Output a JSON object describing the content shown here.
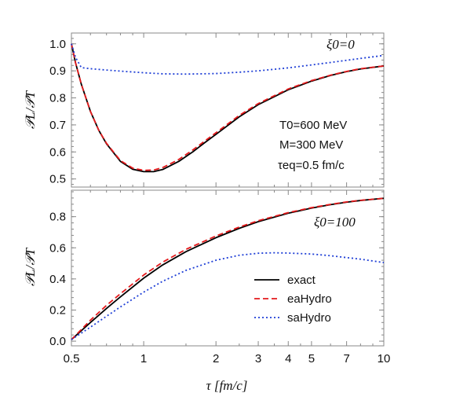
{
  "chart_data": [
    {
      "type": "line",
      "panel": "top",
      "xscale": "log",
      "xlim": [
        0.5,
        10
      ],
      "ylim": [
        0.47,
        1.04
      ],
      "ylabel": "𝒫L/𝒫T",
      "yticks": [
        0.5,
        0.6,
        0.7,
        0.8,
        0.9,
        1.0
      ],
      "ytick_labels": [
        "0.5",
        "0.6",
        "0.7",
        "0.8",
        "0.9",
        "1.0"
      ],
      "annotations": {
        "xi": "ξ0=0",
        "t0": "T0=600 MeV",
        "mass": "M=300 MeV",
        "tau_eq": "τeq=0.5 fm/c"
      },
      "series": [
        {
          "name": "exact",
          "color": "#000000",
          "dash": "solid",
          "x": [
            0.5,
            0.52,
            0.55,
            0.6,
            0.65,
            0.7,
            0.8,
            0.9,
            1.0,
            1.1,
            1.2,
            1.4,
            1.6,
            1.8,
            2.0,
            2.5,
            3.0,
            4.0,
            5.0,
            6.0,
            7.0,
            8.0,
            10.0
          ],
          "y": [
            1.0,
            0.93,
            0.85,
            0.75,
            0.68,
            0.63,
            0.565,
            0.536,
            0.527,
            0.527,
            0.535,
            0.565,
            0.6,
            0.635,
            0.665,
            0.73,
            0.775,
            0.83,
            0.862,
            0.883,
            0.897,
            0.907,
            0.918
          ]
        },
        {
          "name": "eaHydro",
          "color": "#e41a1c",
          "dash": "dashed",
          "x": [
            0.5,
            0.52,
            0.55,
            0.6,
            0.65,
            0.7,
            0.8,
            0.9,
            1.0,
            1.1,
            1.2,
            1.4,
            1.6,
            1.8,
            2.0,
            2.5,
            3.0,
            4.0,
            5.0,
            6.0,
            7.0,
            8.0,
            10.0
          ],
          "y": [
            1.0,
            0.93,
            0.85,
            0.75,
            0.68,
            0.632,
            0.568,
            0.54,
            0.532,
            0.533,
            0.542,
            0.572,
            0.607,
            0.641,
            0.671,
            0.735,
            0.779,
            0.833,
            0.864,
            0.884,
            0.898,
            0.908,
            0.918
          ]
        },
        {
          "name": "saHydro",
          "color": "#1f3fd6",
          "dash": "dotted",
          "x": [
            0.5,
            0.52,
            0.55,
            0.6,
            0.7,
            0.8,
            1.0,
            1.2,
            1.5,
            2.0,
            2.5,
            3.0,
            4.0,
            5.0,
            6.0,
            8.0,
            10.0
          ],
          "y": [
            1.0,
            0.95,
            0.912,
            0.908,
            0.903,
            0.899,
            0.893,
            0.889,
            0.888,
            0.89,
            0.895,
            0.9,
            0.911,
            0.922,
            0.931,
            0.946,
            0.957
          ]
        }
      ]
    },
    {
      "type": "line",
      "panel": "bottom",
      "xscale": "log",
      "xlim": [
        0.5,
        10
      ],
      "ylim": [
        -0.03,
        0.97
      ],
      "xlabel": "τ [fm/c]",
      "ylabel": "𝒫L/𝒫T",
      "xticks": [
        0.5,
        1,
        2,
        3,
        4,
        5,
        7,
        10
      ],
      "xtick_labels": [
        "0.5",
        "1",
        "2",
        "3",
        "4",
        "5",
        "7",
        "10"
      ],
      "yticks": [
        0.0,
        0.2,
        0.4,
        0.6,
        0.8
      ],
      "ytick_labels": [
        "0.0",
        "0.2",
        "0.4",
        "0.6",
        "0.8"
      ],
      "annotations": {
        "xi": "ξ0=100"
      },
      "legend": {
        "position": "lower-right",
        "items": [
          {
            "label": "exact",
            "color": "#000000",
            "dash": "solid"
          },
          {
            "label": "eaHydro",
            "color": "#e41a1c",
            "dash": "dashed"
          },
          {
            "label": "saHydro",
            "color": "#1f3fd6",
            "dash": "dotted"
          }
        ]
      },
      "series": [
        {
          "name": "exact",
          "color": "#000000",
          "dash": "solid",
          "x": [
            0.5,
            0.6,
            0.7,
            0.8,
            1.0,
            1.2,
            1.5,
            2.0,
            2.5,
            3.0,
            4.0,
            5.0,
            6.0,
            7.0,
            8.0,
            10.0
          ],
          "y": [
            0.01,
            0.12,
            0.21,
            0.285,
            0.405,
            0.49,
            0.575,
            0.665,
            0.725,
            0.768,
            0.822,
            0.855,
            0.877,
            0.893,
            0.904,
            0.918
          ]
        },
        {
          "name": "eaHydro",
          "color": "#e41a1c",
          "dash": "dashed",
          "x": [
            0.5,
            0.6,
            0.7,
            0.8,
            1.0,
            1.2,
            1.5,
            2.0,
            2.5,
            3.0,
            4.0,
            5.0,
            6.0,
            7.0,
            8.0,
            10.0
          ],
          "y": [
            0.01,
            0.135,
            0.23,
            0.305,
            0.425,
            0.508,
            0.59,
            0.676,
            0.733,
            0.774,
            0.826,
            0.858,
            0.879,
            0.895,
            0.905,
            0.918
          ]
        },
        {
          "name": "saHydro",
          "color": "#1f3fd6",
          "dash": "dotted",
          "x": [
            0.5,
            0.6,
            0.7,
            0.8,
            1.0,
            1.2,
            1.5,
            2.0,
            2.5,
            3.0,
            3.5,
            4.0,
            5.0,
            6.0,
            7.0,
            8.0,
            10.0
          ],
          "y": [
            0.01,
            0.09,
            0.16,
            0.22,
            0.315,
            0.385,
            0.455,
            0.52,
            0.552,
            0.565,
            0.568,
            0.566,
            0.56,
            0.549,
            0.537,
            0.527,
            0.505
          ]
        }
      ]
    }
  ]
}
